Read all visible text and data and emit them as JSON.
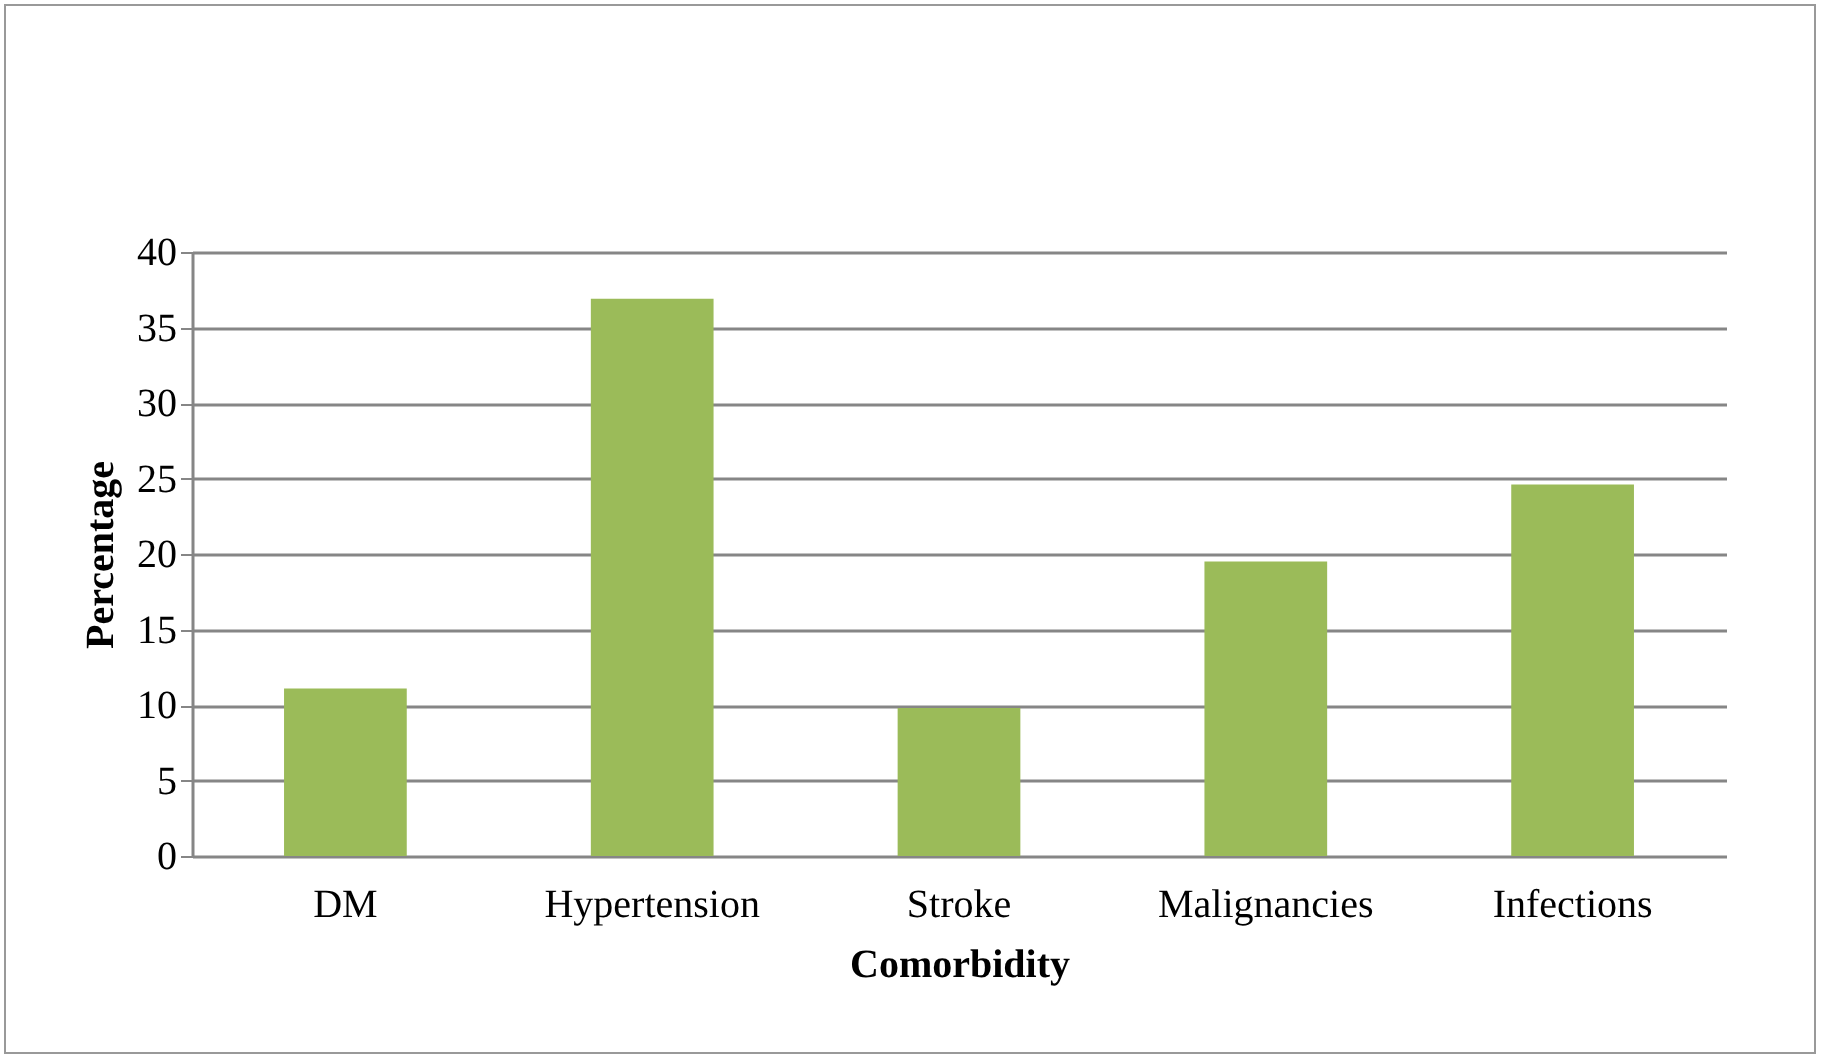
{
  "chart_data": {
    "type": "bar",
    "xlabel": "Comorbidity",
    "ylabel": "Percentage",
    "categories": [
      "DM",
      "Hypertension",
      "Stroke",
      "Malignancies",
      "Infections"
    ],
    "values": [
      11.1,
      36.9,
      9.8,
      19.5,
      24.6
    ],
    "color": "#9bbb59",
    "ylim": [
      0,
      40
    ],
    "yticks": [
      0,
      5,
      10,
      15,
      20,
      25,
      30,
      35,
      40
    ],
    "grid": "y"
  }
}
